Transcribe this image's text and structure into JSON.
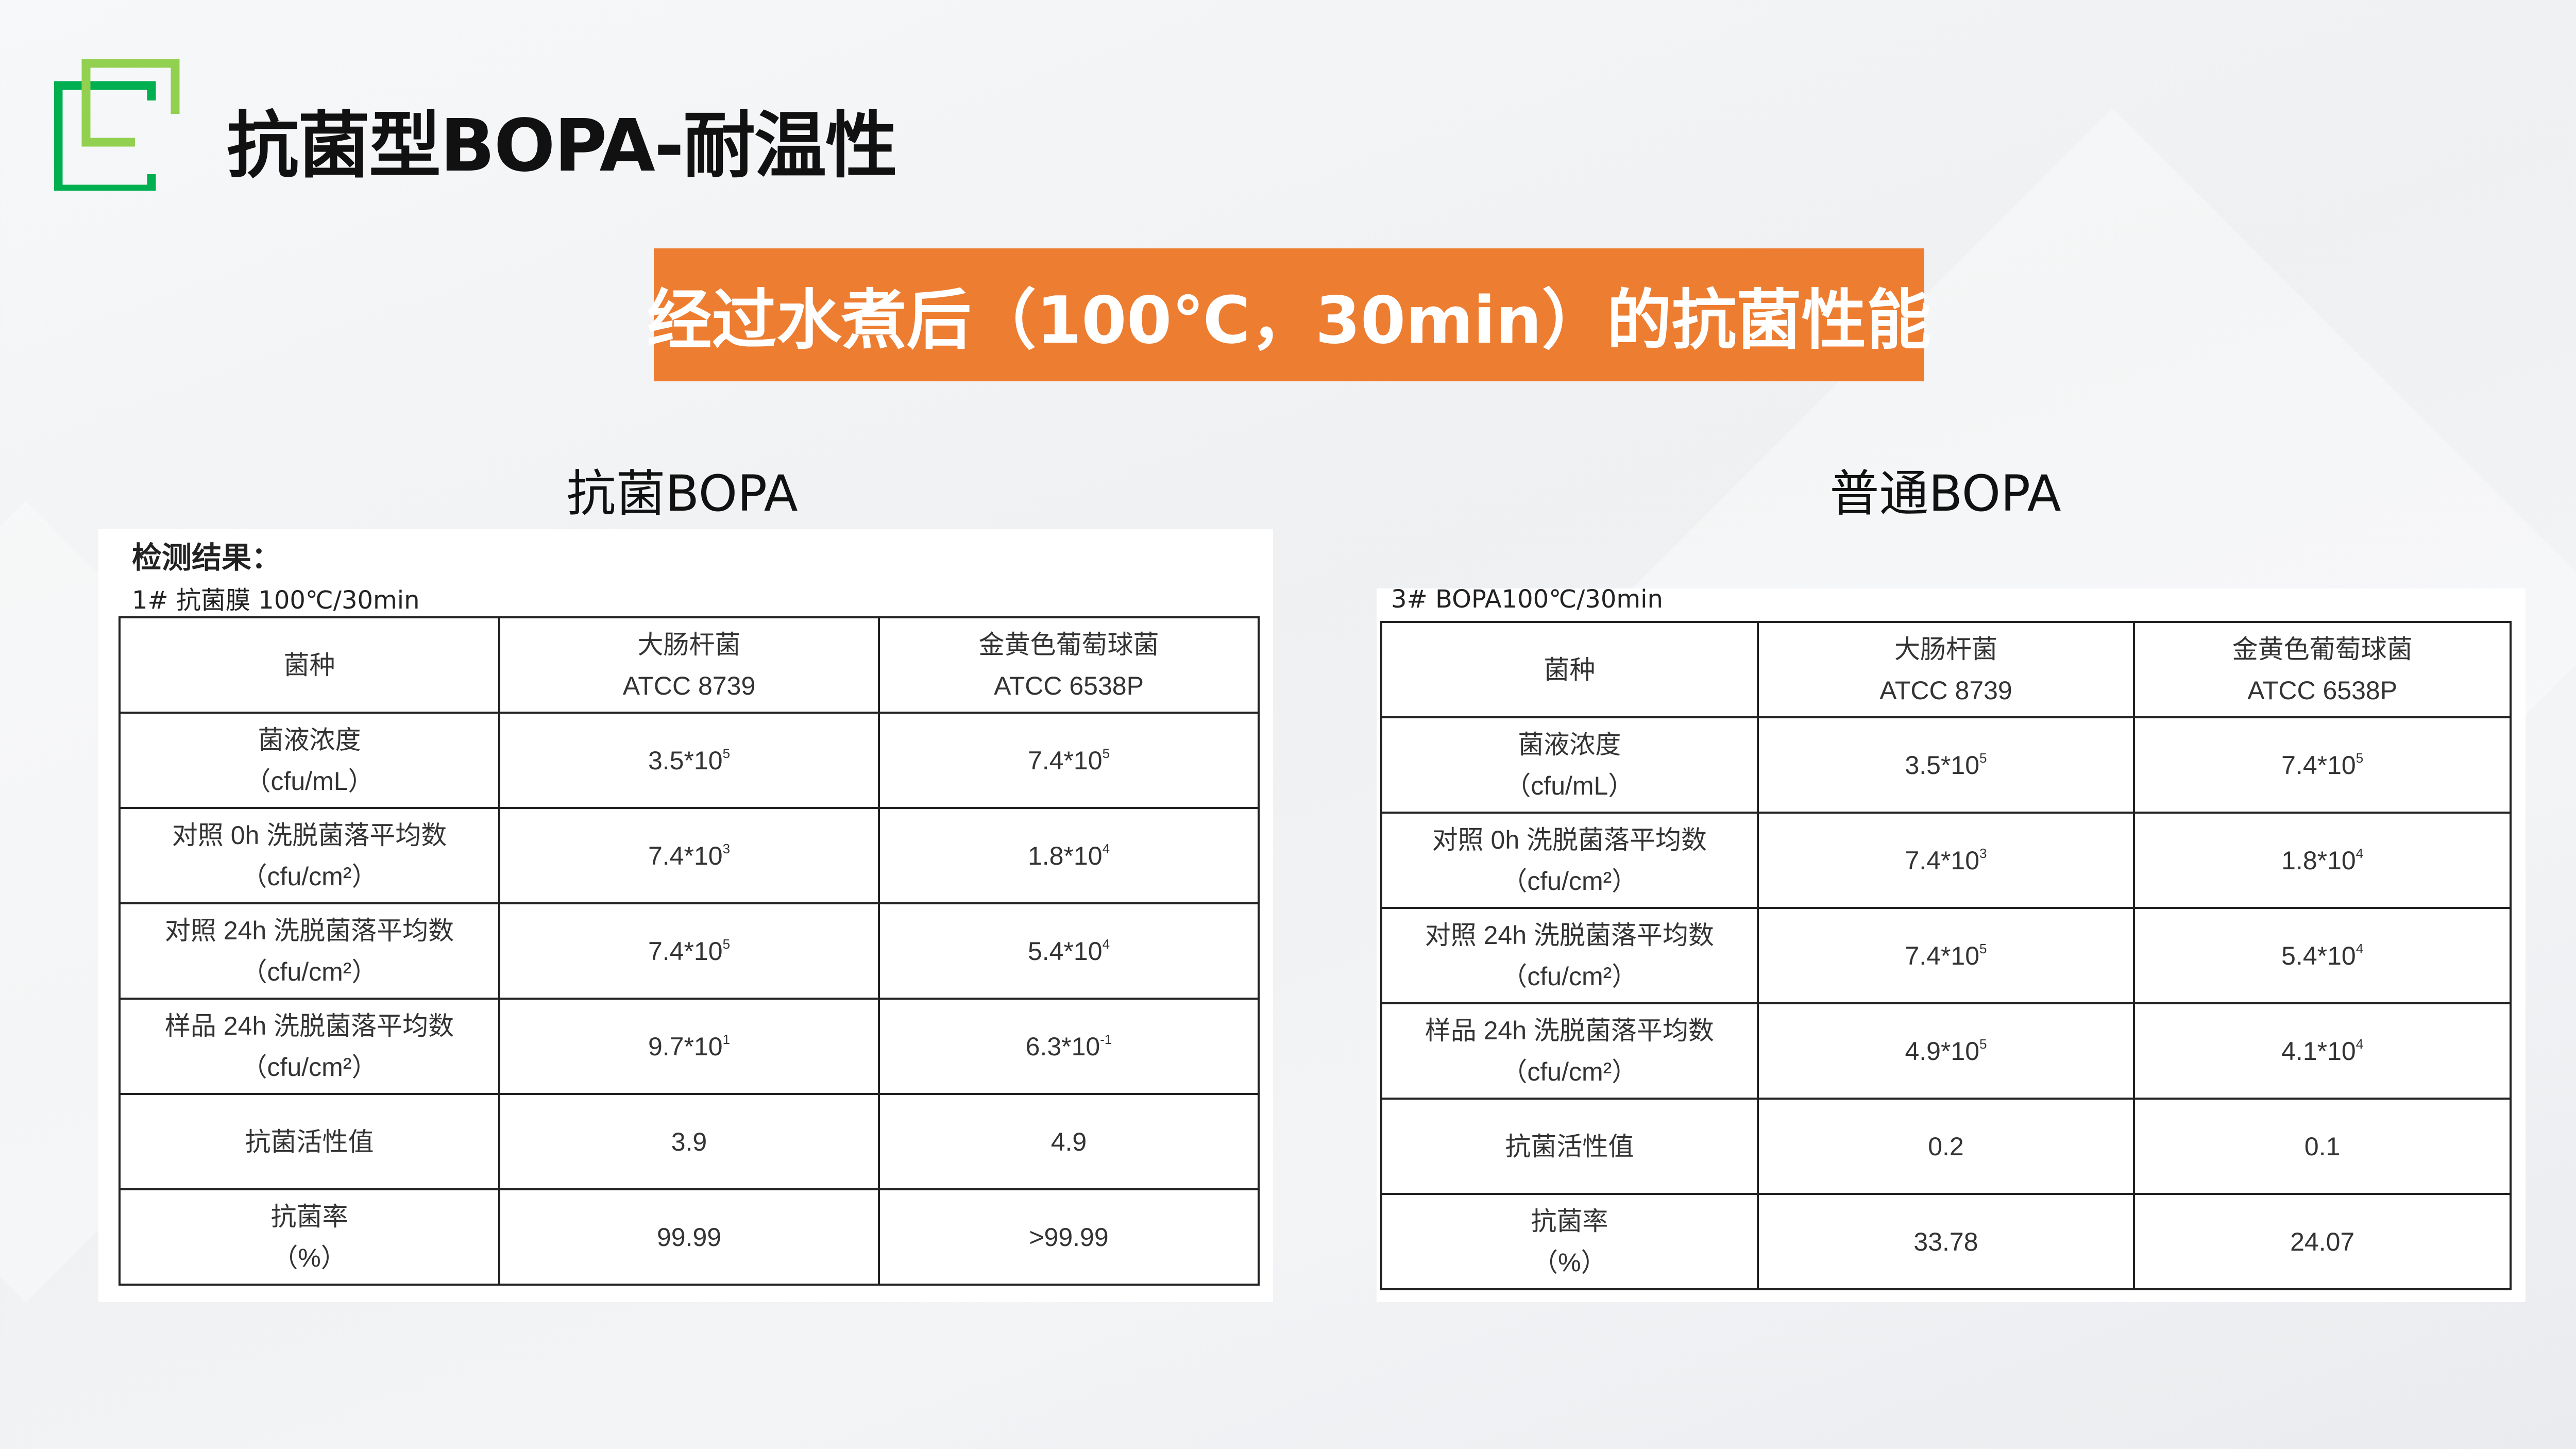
{
  "title": "抗菌型BOPA-耐温性",
  "banner": "经过水煮后（100℃，30min）的抗菌性能",
  "colors": {
    "accent_orange": "#ED7D31",
    "logo_dark_green": "#00AF50",
    "logo_light_green": "#92D050"
  },
  "left": {
    "subtitle": "抗菌BOPA",
    "caption_heading": "检测结果：",
    "caption": "1#  抗菌膜 100℃/30min",
    "header": [
      [
        "菌种"
      ],
      [
        "大肠杆菌",
        "ATCC 8739"
      ],
      [
        "金黄色葡萄球菌",
        "ATCC 6538P"
      ]
    ],
    "rows": [
      {
        "label": [
          "菌液浓度",
          "（cfu/mL）"
        ],
        "values": [
          {
            "base": "3.5*10",
            "exp": "5"
          },
          {
            "base": "7.4*10",
            "exp": "5"
          }
        ]
      },
      {
        "label": [
          "对照 0h 洗脱菌落平均数",
          "（cfu/cm²）"
        ],
        "values": [
          {
            "base": "7.4*10",
            "exp": "3"
          },
          {
            "base": "1.8*10",
            "exp": "4"
          }
        ]
      },
      {
        "label": [
          "对照 24h 洗脱菌落平均数",
          "（cfu/cm²）"
        ],
        "values": [
          {
            "base": "7.4*10",
            "exp": "5"
          },
          {
            "base": "5.4*10",
            "exp": "4"
          }
        ]
      },
      {
        "label": [
          "样品 24h 洗脱菌落平均数",
          "（cfu/cm²）"
        ],
        "values": [
          {
            "base": "9.7*10",
            "exp": "1"
          },
          {
            "base": "6.3*10",
            "exp": "-1"
          }
        ]
      },
      {
        "label": [
          "抗菌活性值"
        ],
        "values": [
          {
            "base": "3.9",
            "exp": ""
          },
          {
            "base": "4.9",
            "exp": ""
          }
        ]
      },
      {
        "label": [
          "抗菌率",
          "（%）"
        ],
        "values": [
          {
            "base": "99.99",
            "exp": ""
          },
          {
            "base": ">99.99",
            "exp": ""
          }
        ]
      }
    ]
  },
  "right": {
    "subtitle": "普通BOPA",
    "caption": "3#    BOPA100℃/30min",
    "header": [
      [
        "菌种"
      ],
      [
        "大肠杆菌",
        "ATCC 8739"
      ],
      [
        "金黄色葡萄球菌",
        "ATCC 6538P"
      ]
    ],
    "rows": [
      {
        "label": [
          "菌液浓度",
          "（cfu/mL）"
        ],
        "values": [
          {
            "base": "3.5*10",
            "exp": "5"
          },
          {
            "base": "7.4*10",
            "exp": "5"
          }
        ]
      },
      {
        "label": [
          "对照 0h 洗脱菌落平均数",
          "（cfu/cm²）"
        ],
        "values": [
          {
            "base": "7.4*10",
            "exp": "3"
          },
          {
            "base": "1.8*10",
            "exp": "4"
          }
        ]
      },
      {
        "label": [
          "对照 24h 洗脱菌落平均数",
          "（cfu/cm²）"
        ],
        "values": [
          {
            "base": "7.4*10",
            "exp": "5"
          },
          {
            "base": "5.4*10",
            "exp": "4"
          }
        ]
      },
      {
        "label": [
          "样品 24h 洗脱菌落平均数",
          "（cfu/cm²）"
        ],
        "values": [
          {
            "base": "4.9*10",
            "exp": "5"
          },
          {
            "base": "4.1*10",
            "exp": "4"
          }
        ]
      },
      {
        "label": [
          "抗菌活性值"
        ],
        "values": [
          {
            "base": "0.2",
            "exp": ""
          },
          {
            "base": "0.1",
            "exp": ""
          }
        ]
      },
      {
        "label": [
          "抗菌率",
          "（%）"
        ],
        "values": [
          {
            "base": "33.78",
            "exp": ""
          },
          {
            "base": "24.07",
            "exp": ""
          }
        ]
      }
    ]
  }
}
